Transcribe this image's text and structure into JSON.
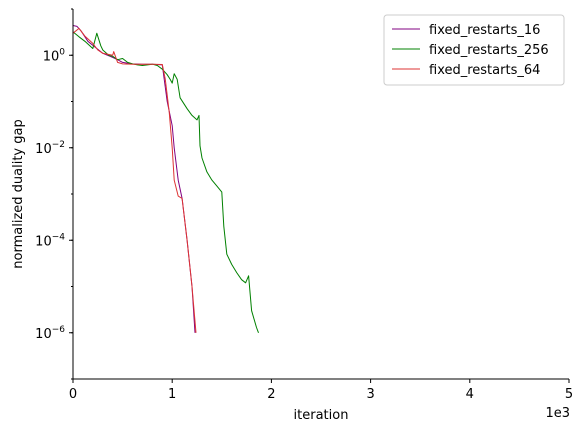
{
  "chart_data": {
    "type": "line",
    "title": "",
    "xlabel": "iteration",
    "ylabel": "normalized duality gap",
    "x_multiplier_label": "1e3",
    "xlim": [
      0,
      5000
    ],
    "ylim": [
      1e-07,
      10
    ],
    "yscale": "log",
    "grid": false,
    "legend_position": "top-right",
    "x_ticks": [
      {
        "value": 0,
        "label": "0"
      },
      {
        "value": 1000,
        "label": "1"
      },
      {
        "value": 2000,
        "label": "2"
      },
      {
        "value": 3000,
        "label": "3"
      },
      {
        "value": 4000,
        "label": "4"
      },
      {
        "value": 5000,
        "label": "5"
      }
    ],
    "y_ticks": [
      {
        "value": 1,
        "base": "10",
        "exp": "0"
      },
      {
        "value": 0.01,
        "base": "10",
        "exp": "−2"
      },
      {
        "value": 0.0001,
        "base": "10",
        "exp": "−4"
      },
      {
        "value": 1e-06,
        "base": "10",
        "exp": "−6"
      }
    ],
    "series": [
      {
        "name": "fixed_restarts_16",
        "color": "#800080",
        "points": [
          [
            0,
            4.4
          ],
          [
            40,
            4.2
          ],
          [
            80,
            3.4
          ],
          [
            150,
            2.0
          ],
          [
            240,
            1.4
          ],
          [
            300,
            1.1
          ],
          [
            400,
            0.9
          ],
          [
            450,
            0.8
          ],
          [
            500,
            0.7
          ],
          [
            600,
            0.65
          ],
          [
            700,
            0.64
          ],
          [
            800,
            0.64
          ],
          [
            900,
            0.62
          ],
          [
            950,
            0.1
          ],
          [
            1000,
            0.03
          ],
          [
            1020,
            0.01
          ],
          [
            1060,
            0.002
          ],
          [
            1100,
            0.0008
          ],
          [
            1150,
            0.0001
          ],
          [
            1200,
            1e-05
          ],
          [
            1230,
            1e-06
          ]
        ]
      },
      {
        "name": "fixed_restarts_256",
        "color": "#008000",
        "points": [
          [
            0,
            3.2
          ],
          [
            60,
            2.5
          ],
          [
            120,
            2.0
          ],
          [
            200,
            1.4
          ],
          [
            240,
            3.0
          ],
          [
            280,
            1.6
          ],
          [
            300,
            1.3
          ],
          [
            360,
            1.0
          ],
          [
            400,
            0.95
          ],
          [
            450,
            0.8
          ],
          [
            500,
            0.85
          ],
          [
            550,
            0.7
          ],
          [
            600,
            0.65
          ],
          [
            650,
            0.62
          ],
          [
            700,
            0.6
          ],
          [
            750,
            0.62
          ],
          [
            800,
            0.64
          ],
          [
            850,
            0.6
          ],
          [
            900,
            0.5
          ],
          [
            950,
            0.38
          ],
          [
            980,
            0.3
          ],
          [
            1000,
            0.25
          ],
          [
            1020,
            0.4
          ],
          [
            1050,
            0.3
          ],
          [
            1080,
            0.12
          ],
          [
            1150,
            0.07
          ],
          [
            1200,
            0.05
          ],
          [
            1250,
            0.04
          ],
          [
            1270,
            0.05
          ],
          [
            1280,
            0.011
          ],
          [
            1300,
            0.006
          ],
          [
            1350,
            0.003
          ],
          [
            1400,
            0.002
          ],
          [
            1450,
            0.0015
          ],
          [
            1500,
            0.0011
          ],
          [
            1520,
            0.0002
          ],
          [
            1550,
            5e-05
          ],
          [
            1600,
            3e-05
          ],
          [
            1650,
            2e-05
          ],
          [
            1700,
            1.4e-05
          ],
          [
            1740,
            1.2e-05
          ],
          [
            1770,
            1.7e-05
          ],
          [
            1800,
            3e-06
          ],
          [
            1850,
            1.3e-06
          ],
          [
            1870,
            1e-06
          ]
        ]
      },
      {
        "name": "fixed_restarts_64",
        "color": "#dd3333",
        "points": [
          [
            0,
            3.0
          ],
          [
            60,
            3.8
          ],
          [
            120,
            2.6
          ],
          [
            200,
            1.8
          ],
          [
            250,
            1.3
          ],
          [
            300,
            1.1
          ],
          [
            350,
            1.05
          ],
          [
            400,
            1.0
          ],
          [
            410,
            1.2
          ],
          [
            450,
            0.7
          ],
          [
            500,
            0.65
          ],
          [
            600,
            0.64
          ],
          [
            700,
            0.64
          ],
          [
            800,
            0.64
          ],
          [
            900,
            0.63
          ],
          [
            930,
            0.3
          ],
          [
            970,
            0.06
          ],
          [
            1000,
            0.01
          ],
          [
            1020,
            0.002
          ],
          [
            1060,
            0.0009
          ],
          [
            1100,
            0.0008
          ],
          [
            1150,
            0.0001
          ],
          [
            1200,
            1e-05
          ],
          [
            1240,
            1e-06
          ]
        ]
      }
    ]
  }
}
